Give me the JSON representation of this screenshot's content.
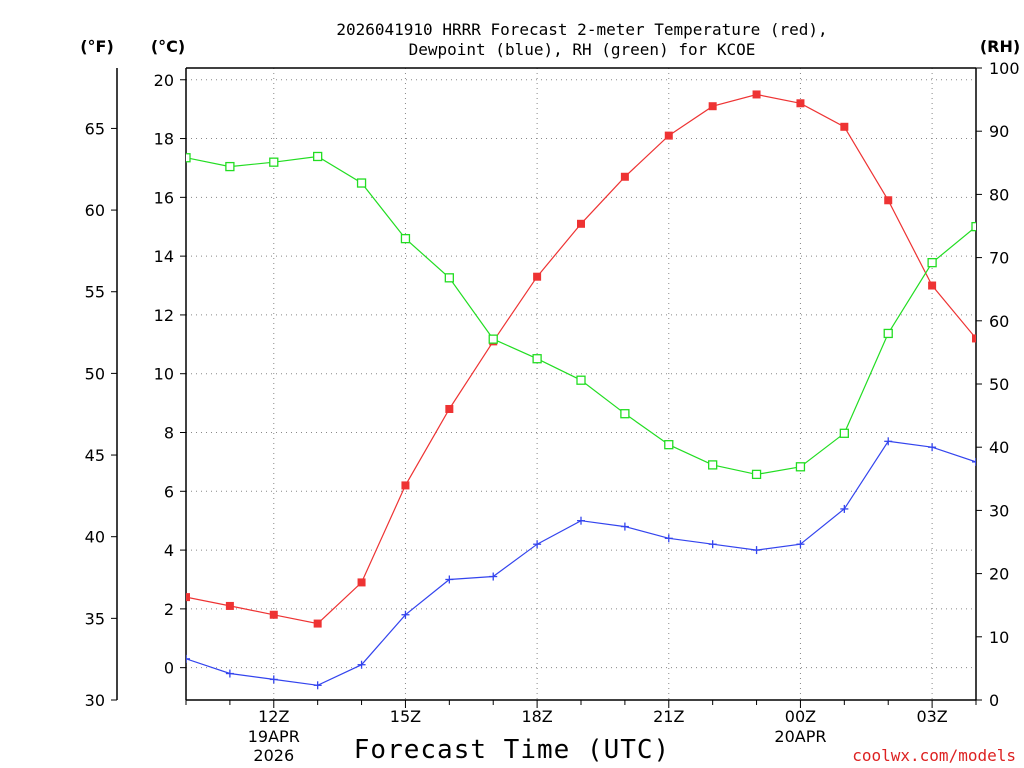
{
  "chart_data": {
    "type": "line",
    "title_line1": "2026041910 HRRR Forecast 2-meter Temperature (red),",
    "title_line2": "Dewpoint (blue), RH (green) for KCOE",
    "xlabel": "Forecast Time (UTC)",
    "credit": "coolwx.com/models",
    "units": {
      "fahrenheit": "(°F)",
      "celsius": "(°C)",
      "rh": "(RH)"
    },
    "x_hours": [
      10,
      11,
      12,
      13,
      14,
      15,
      16,
      17,
      18,
      19,
      20,
      21,
      22,
      23,
      24,
      25,
      26,
      27,
      28
    ],
    "xlim": [
      10,
      28
    ],
    "x_tick_hours": [
      12,
      15,
      18,
      21,
      24,
      27
    ],
    "x_tick_labels": [
      "12Z",
      "15Z",
      "18Z",
      "21Z",
      "00Z",
      "03Z"
    ],
    "date_labels": [
      {
        "hour": 12,
        "lines": [
          "19APR",
          "2026"
        ]
      },
      {
        "hour": 24,
        "lines": [
          "20APR"
        ]
      }
    ],
    "celsius_axis": {
      "ylim": [
        -1.1,
        20.4
      ],
      "ticks": [
        0,
        2,
        4,
        6,
        8,
        10,
        12,
        14,
        16,
        18,
        20
      ]
    },
    "fahrenheit_axis": {
      "ylim": [
        30.0,
        68.7
      ],
      "ticks": [
        30,
        35,
        40,
        45,
        50,
        55,
        60,
        65
      ]
    },
    "rh_axis": {
      "ylim": [
        0,
        100
      ],
      "ticks": [
        0,
        10,
        20,
        30,
        40,
        50,
        60,
        70,
        80,
        90,
        100
      ]
    },
    "series": [
      {
        "name": "Temperature",
        "axis": "celsius",
        "color": "#ee3333",
        "marker": "filled-square",
        "values": [
          2.4,
          2.1,
          1.8,
          1.5,
          2.9,
          6.2,
          8.8,
          11.1,
          13.3,
          15.1,
          16.7,
          18.1,
          19.1,
          19.5,
          19.2,
          18.4,
          15.9,
          13.0,
          11.2
        ]
      },
      {
        "name": "Dewpoint",
        "axis": "celsius",
        "color": "#3344ee",
        "marker": "plus",
        "values": [
          0.3,
          -0.2,
          -0.4,
          -0.6,
          0.1,
          1.8,
          3.0,
          3.1,
          4.2,
          5.0,
          4.8,
          4.4,
          4.2,
          4.0,
          4.2,
          5.4,
          7.7,
          7.5,
          7.0
        ]
      },
      {
        "name": "RH",
        "axis": "rh",
        "color": "#22dd22",
        "marker": "open-square",
        "values": [
          85.8,
          84.4,
          85.1,
          86.0,
          81.8,
          73.0,
          66.8,
          57.1,
          54.0,
          50.6,
          45.3,
          40.4,
          37.2,
          35.7,
          36.9,
          42.2,
          58.0,
          69.2,
          74.9
        ]
      }
    ]
  }
}
